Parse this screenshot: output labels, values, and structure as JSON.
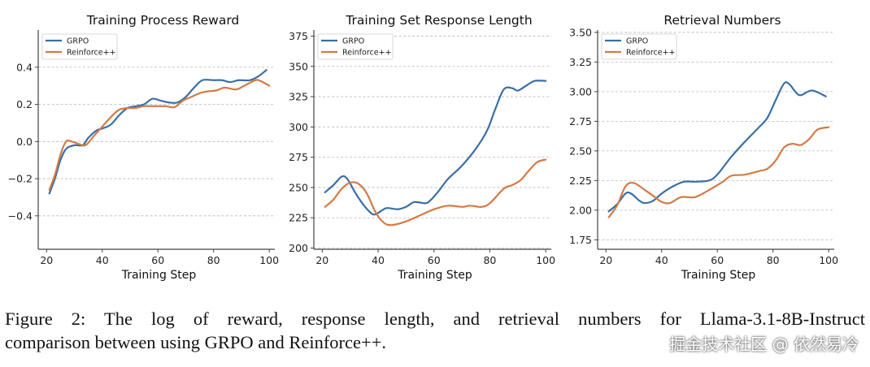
{
  "chart_data": [
    {
      "type": "line",
      "title": "Training Process Reward",
      "xlabel": "Training Step",
      "ylabel": "",
      "xlim": [
        17,
        102
      ],
      "ylim": [
        -0.58,
        0.6
      ],
      "xticks": [
        20,
        40,
        60,
        80,
        100
      ],
      "yticks": [
        -0.4,
        -0.2,
        0.0,
        0.2,
        0.4
      ],
      "ytick_labels": [
        "−0.4",
        "−0.2",
        "0.0",
        "0.2",
        "0.4"
      ],
      "grid": "horizontal dashed",
      "legend": "top-left",
      "series": [
        {
          "name": "GRPO",
          "x": [
            21,
            23,
            25,
            27,
            30,
            33,
            35,
            38,
            40,
            43,
            46,
            49,
            52,
            55,
            58,
            61,
            64,
            67,
            70,
            73,
            76,
            80,
            83,
            86,
            89,
            93,
            96,
            99
          ],
          "y": [
            -0.28,
            -0.2,
            -0.1,
            -0.04,
            -0.02,
            -0.02,
            0.02,
            0.06,
            0.07,
            0.09,
            0.14,
            0.18,
            0.19,
            0.2,
            0.23,
            0.22,
            0.21,
            0.21,
            0.24,
            0.29,
            0.33,
            0.33,
            0.33,
            0.32,
            0.33,
            0.33,
            0.35,
            0.385
          ]
        },
        {
          "name": "Reinforce++",
          "x": [
            21,
            23,
            25,
            27,
            29,
            31,
            34,
            37,
            40,
            43,
            46,
            49,
            52,
            55,
            60,
            63,
            66,
            69,
            72,
            75,
            78,
            81,
            84,
            88,
            91,
            95,
            97,
            100
          ],
          "y": [
            -0.26,
            -0.18,
            -0.07,
            0.0,
            0.0,
            -0.01,
            -0.02,
            0.03,
            0.08,
            0.13,
            0.17,
            0.18,
            0.18,
            0.19,
            0.19,
            0.19,
            0.185,
            0.22,
            0.24,
            0.26,
            0.27,
            0.275,
            0.29,
            0.28,
            0.3,
            0.33,
            0.325,
            0.3
          ]
        }
      ]
    },
    {
      "type": "line",
      "title": "Training Set Response Length",
      "xlabel": "Training Step",
      "ylabel": "",
      "xlim": [
        17,
        102
      ],
      "ylim": [
        199,
        380
      ],
      "xticks": [
        20,
        40,
        60,
        80,
        100
      ],
      "yticks": [
        200,
        225,
        250,
        275,
        300,
        325,
        350,
        375
      ],
      "ytick_labels": [
        "200",
        "225",
        "250",
        "275",
        "300",
        "325",
        "350",
        "375"
      ],
      "grid": "horizontal dashed",
      "legend": "top-left",
      "series": [
        {
          "name": "GRPO",
          "x": [
            21,
            24,
            27,
            29,
            32,
            35,
            38,
            40,
            43,
            47,
            50,
            53,
            57,
            59,
            62,
            65,
            70,
            75,
            79,
            82,
            85,
            88,
            90,
            93,
            96,
            100
          ],
          "y": [
            246,
            252,
            259,
            257,
            245,
            235,
            228,
            229,
            233,
            232,
            234,
            238,
            237,
            240,
            248,
            257,
            268,
            282,
            297,
            315,
            331,
            332,
            330,
            334,
            338,
            338
          ]
        },
        {
          "name": "Reinforce++",
          "x": [
            21,
            24,
            27,
            30,
            33,
            36,
            39,
            42,
            45,
            50,
            55,
            60,
            65,
            70,
            73,
            77,
            80,
            85,
            88,
            91,
            94,
            97,
            100
          ],
          "y": [
            234,
            240,
            249,
            254,
            253,
            245,
            230,
            221,
            219,
            222,
            227,
            232,
            235,
            234,
            235,
            234,
            237,
            249,
            252,
            256,
            264,
            271,
            273
          ]
        }
      ]
    },
    {
      "type": "line",
      "title": "Retrieval Numbers",
      "xlabel": "Training Step",
      "ylabel": "",
      "xlim": [
        17,
        102
      ],
      "ylim": [
        1.67,
        3.52
      ],
      "xticks": [
        20,
        40,
        60,
        80,
        100
      ],
      "yticks": [
        1.75,
        2.0,
        2.25,
        2.5,
        2.75,
        3.0,
        3.25,
        3.5
      ],
      "ytick_labels": [
        "1.75",
        "2.00",
        "2.25",
        "2.50",
        "2.75",
        "3.00",
        "3.25",
        "3.50"
      ],
      "grid": "horizontal dashed",
      "legend": "top-left",
      "series": [
        {
          "name": "GRPO",
          "x": [
            21,
            24,
            27,
            29,
            32,
            34,
            37,
            40,
            44,
            48,
            52,
            57,
            60,
            65,
            70,
            75,
            78,
            81,
            84,
            86,
            88,
            90,
            94,
            99
          ],
          "y": [
            1.99,
            2.05,
            2.14,
            2.14,
            2.08,
            2.06,
            2.08,
            2.14,
            2.2,
            2.24,
            2.24,
            2.25,
            2.3,
            2.45,
            2.58,
            2.7,
            2.78,
            2.93,
            3.07,
            3.06,
            3.0,
            2.97,
            3.01,
            2.96
          ]
        },
        {
          "name": "Reinforce++",
          "x": [
            21,
            24,
            27,
            30,
            34,
            37,
            40,
            43,
            47,
            52,
            57,
            62,
            65,
            70,
            75,
            78,
            81,
            84,
            87,
            90,
            93,
            96,
            100
          ],
          "y": [
            1.94,
            2.04,
            2.2,
            2.23,
            2.17,
            2.12,
            2.07,
            2.06,
            2.11,
            2.11,
            2.17,
            2.24,
            2.29,
            2.3,
            2.33,
            2.35,
            2.42,
            2.53,
            2.56,
            2.55,
            2.6,
            2.68,
            2.7
          ]
        }
      ]
    }
  ],
  "colors": {
    "GRPO": "#3a6fa6",
    "Reinforce++": "#d47a45",
    "grid": "#b8b8b8",
    "axis": "#444444"
  },
  "caption": {
    "line1": "Figure 2: The log of reward, response length, and retrieval numbers for Llama-3.1-8B-Instruct",
    "line2": "comparison between using GRPO and Reinforce++."
  },
  "watermark": "掘金技术社区 @ 依然易冷"
}
